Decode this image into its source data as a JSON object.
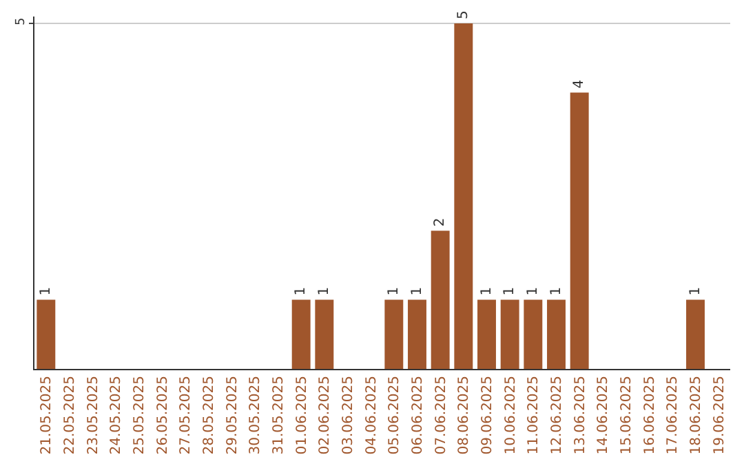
{
  "chart_data": {
    "type": "bar",
    "categories": [
      "21.05.2025",
      "22.05.2025",
      "23.05.2025",
      "24.05.2025",
      "25.05.2025",
      "26.05.2025",
      "27.05.2025",
      "28.05.2025",
      "29.05.2025",
      "30.05.2025",
      "31.05.2025",
      "01.06.2025",
      "02.06.2025",
      "03.06.2025",
      "04.06.2025",
      "05.06.2025",
      "06.06.2025",
      "07.06.2025",
      "08.06.2025",
      "09.06.2025",
      "10.06.2025",
      "11.06.2025",
      "12.06.2025",
      "13.06.2025",
      "14.06.2025",
      "15.06.2025",
      "16.06.2025",
      "17.06.2025",
      "18.06.2025",
      "19.06.2025"
    ],
    "values": [
      1,
      0,
      0,
      0,
      0,
      0,
      0,
      0,
      0,
      0,
      0,
      1,
      1,
      0,
      0,
      1,
      1,
      2,
      5,
      1,
      1,
      1,
      1,
      4,
      0,
      0,
      0,
      0,
      1,
      0
    ],
    "value_labels": [
      "1",
      null,
      null,
      null,
      null,
      null,
      null,
      null,
      null,
      null,
      null,
      "1",
      "1",
      null,
      null,
      "1",
      "1",
      "2",
      "5",
      "1",
      "1",
      "1",
      "1",
      "4",
      null,
      null,
      null,
      null,
      "1",
      null
    ],
    "color": "#a0562c",
    "ylim": [
      0,
      5.1
    ],
    "yticks": [
      5
    ],
    "grid": "y",
    "legend": false
  }
}
